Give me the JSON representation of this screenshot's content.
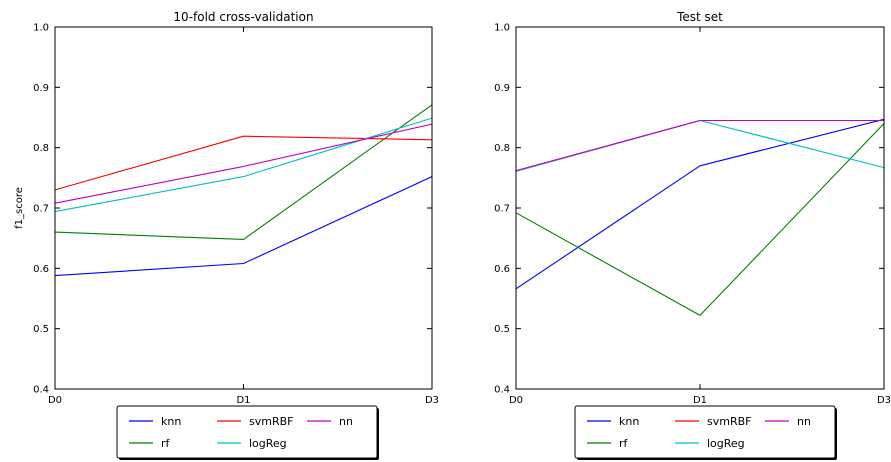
{
  "chart_data": [
    {
      "type": "line",
      "title": "10-fold cross-validation",
      "xlabel": "",
      "ylabel": "f1_score",
      "categories": [
        "D0",
        "D1",
        "D3"
      ],
      "ylim": [
        0.4,
        1.0
      ],
      "yticks": [
        "0.4",
        "0.5",
        "0.6",
        "0.7",
        "0.8",
        "0.9",
        "1.0"
      ],
      "grid": false,
      "legend_position": "bottom-center, below plot",
      "series": [
        {
          "name": "knn",
          "color": "#0000ff",
          "values": [
            0.588,
            0.608,
            0.752
          ]
        },
        {
          "name": "rf",
          "color": "#008000",
          "values": [
            0.66,
            0.648,
            0.871
          ]
        },
        {
          "name": "svmRBF",
          "color": "#ff0000",
          "values": [
            0.73,
            0.819,
            0.813
          ]
        },
        {
          "name": "logReg",
          "color": "#00bfbf",
          "values": [
            0.694,
            0.752,
            0.849
          ]
        },
        {
          "name": "nn",
          "color": "#bf00bf",
          "values": [
            0.708,
            0.769,
            0.839
          ]
        }
      ]
    },
    {
      "type": "line",
      "title": "Test set",
      "xlabel": "",
      "ylabel": "",
      "categories": [
        "D0",
        "D1",
        "D3"
      ],
      "ylim": [
        0.4,
        1.0
      ],
      "yticks": [
        "0.4",
        "0.5",
        "0.6",
        "0.7",
        "0.8",
        "0.9",
        "1.0"
      ],
      "grid": false,
      "legend_position": "bottom-center, below plot",
      "series": [
        {
          "name": "knn",
          "color": "#0000ff",
          "values": [
            0.566,
            0.77,
            0.847
          ]
        },
        {
          "name": "rf",
          "color": "#008000",
          "values": [
            0.692,
            0.522,
            0.84
          ]
        },
        {
          "name": "svmRBF",
          "color": "#ff0000",
          "values": [
            0.761,
            0.845,
            0.845
          ]
        },
        {
          "name": "logReg",
          "color": "#00bfbf",
          "values": [
            0.761,
            0.845,
            0.767
          ]
        },
        {
          "name": "nn",
          "color": "#bf00bf",
          "values": [
            0.762,
            0.845,
            0.845
          ]
        }
      ]
    }
  ]
}
